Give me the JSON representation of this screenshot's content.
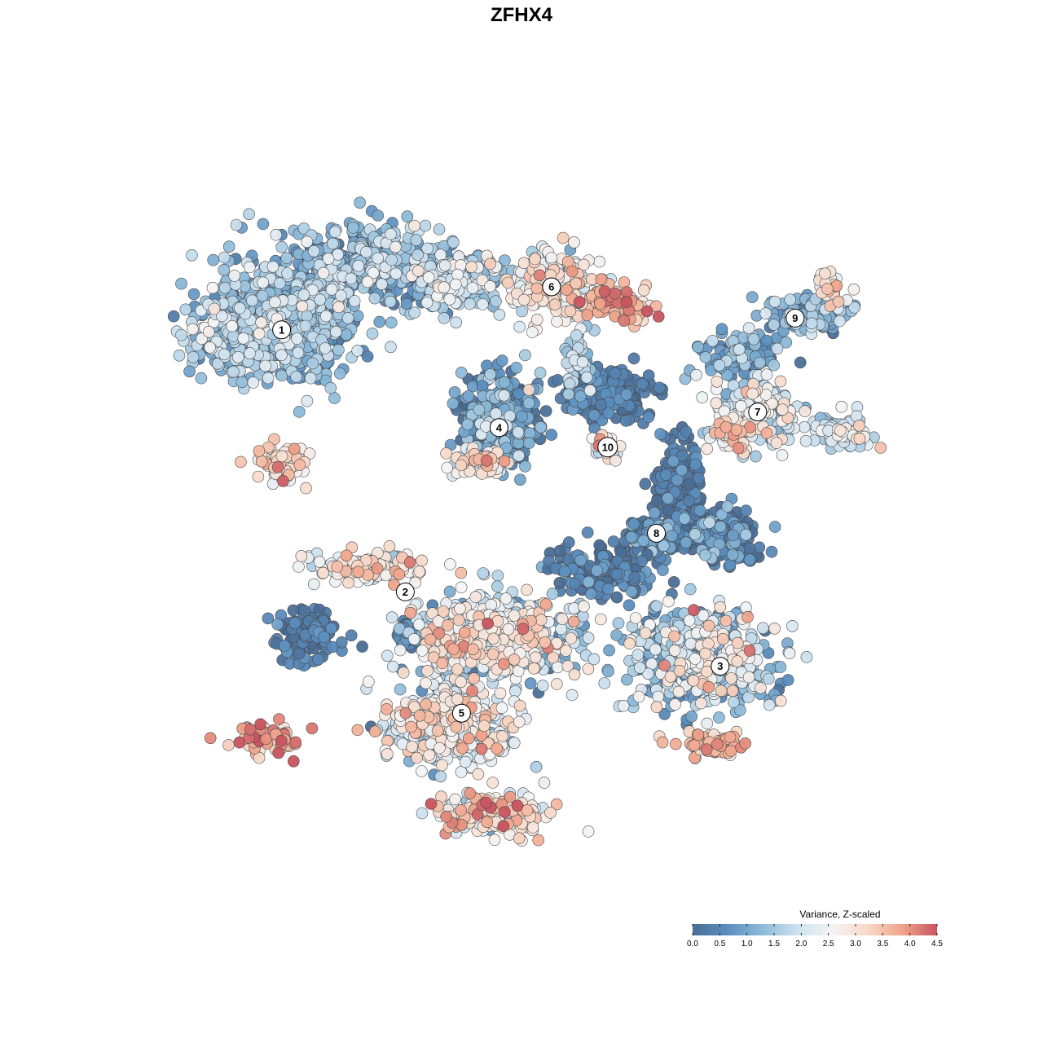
{
  "chart_data": {
    "type": "scatter",
    "title": "ZFHX4",
    "xlabel": "",
    "ylabel": "",
    "grid": false,
    "legend": {
      "title": "Variance, Z-scaled",
      "placement": "bottom-right",
      "range": [
        0,
        4.5
      ],
      "ticks": [
        "0.0",
        "0.5",
        "1.0",
        "1.5",
        "2.0",
        "2.5",
        "3.0",
        "3.5",
        "4.0",
        "4.5"
      ],
      "colors": [
        "#4a6d96",
        "#5b8fc0",
        "#8dbbd9",
        "#cde1ef",
        "#f4f4f4",
        "#f8d9c8",
        "#f0a48a",
        "#c8545f"
      ]
    },
    "clusters": [
      {
        "label": "1",
        "x": -6.4,
        "y": 4.9
      },
      {
        "label": "2",
        "x": -3.1,
        "y": -1.8
      },
      {
        "label": "3",
        "x": 5.3,
        "y": -3.7
      },
      {
        "label": "4",
        "x": -0.6,
        "y": 2.4
      },
      {
        "label": "5",
        "x": -1.6,
        "y": -4.9
      },
      {
        "label": "6",
        "x": 0.8,
        "y": 6.0
      },
      {
        "label": "7",
        "x": 6.3,
        "y": 2.8
      },
      {
        "label": "8",
        "x": 3.6,
        "y": -0.3
      },
      {
        "label": "9",
        "x": 7.3,
        "y": 5.2
      },
      {
        "label": "10",
        "x": 2.3,
        "y": 1.9
      }
    ]
  }
}
